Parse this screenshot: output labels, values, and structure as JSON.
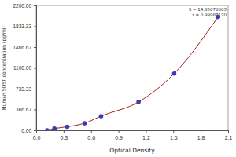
{
  "chart_data": {
    "type": "scatter",
    "x_label": "Optical Density",
    "y_label": "Human SOST concentration (pg/ml)",
    "annotations": [
      "S = 14.85070003",
      "r = 0.99987170"
    ],
    "x": [
      0.12,
      0.2,
      0.34,
      0.53,
      0.71,
      1.12,
      1.51,
      1.99
    ],
    "values": [
      0,
      31.25,
      62.5,
      125,
      250,
      500,
      1000,
      2000
    ],
    "color": "#3a3ab8",
    "marker": "circle",
    "line_style": "smooth",
    "xlim": [
      0,
      2.1
    ],
    "xticks": [
      {
        "value": 0,
        "label": "0.0"
      },
      0.3,
      0.6,
      0.9,
      1.2,
      1.5,
      1.8,
      2.1
    ],
    "ylim": [
      0,
      2200
    ],
    "yticks": [
      {
        "value": 0,
        "label": "0.00"
      },
      366.67,
      733.33,
      {
        "value": 1100,
        "label": "1100.00"
      },
      1466.67,
      1833.33,
      {
        "value": 2200,
        "label": "2200.00"
      }
    ],
    "grid": false
  }
}
